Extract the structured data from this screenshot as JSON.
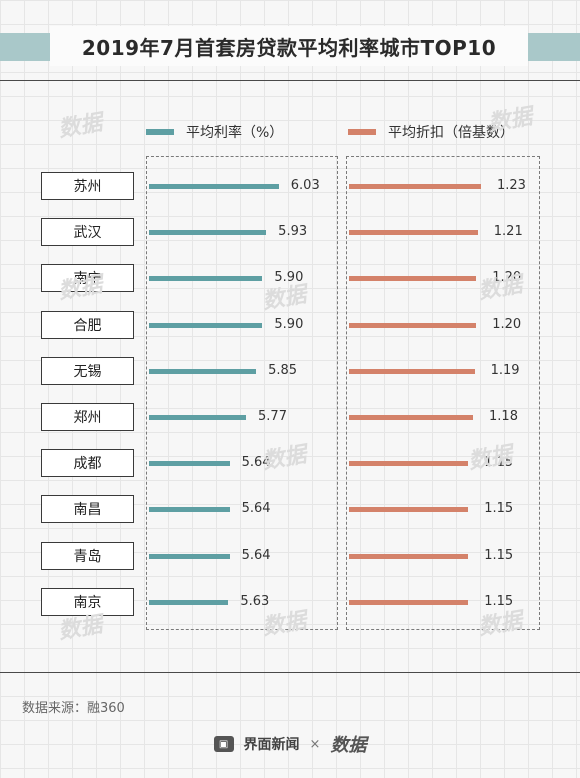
{
  "title": "2019年7月首套房贷款平均利率城市TOP10",
  "legend": {
    "rate": "平均利率（%）",
    "discount": "平均折扣（倍基数）"
  },
  "colors": {
    "rate": "#5e9fa3",
    "discount": "#d4826a"
  },
  "watermark_text": "数据",
  "source": "数据来源：融360",
  "footer": {
    "brand1": "界面新闻",
    "times": "×",
    "brand2": "数据"
  },
  "chart_data": {
    "type": "bar",
    "orientation": "horizontal",
    "categories": [
      "苏州",
      "武汉",
      "南宁",
      "合肥",
      "无锡",
      "郑州",
      "成都",
      "南昌",
      "青岛",
      "南京"
    ],
    "series": [
      {
        "name": "平均利率（%）",
        "values": [
          6.03,
          5.93,
          5.9,
          5.9,
          5.85,
          5.77,
          5.64,
          5.64,
          5.64,
          5.63
        ],
        "labels": [
          "6.03",
          "5.93",
          "5.90",
          "5.90",
          "5.85",
          "5.77",
          "5.64",
          "5.64",
          "5.64",
          "5.63"
        ]
      },
      {
        "name": "平均折扣（倍基数）",
        "values": [
          1.23,
          1.21,
          1.2,
          1.2,
          1.19,
          1.18,
          1.15,
          1.15,
          1.15,
          1.15
        ],
        "labels": [
          "1.23",
          "1.21",
          "1.20",
          "1.20",
          "1.19",
          "1.18",
          "1.15",
          "1.15",
          "1.15",
          "1.15"
        ]
      }
    ]
  }
}
